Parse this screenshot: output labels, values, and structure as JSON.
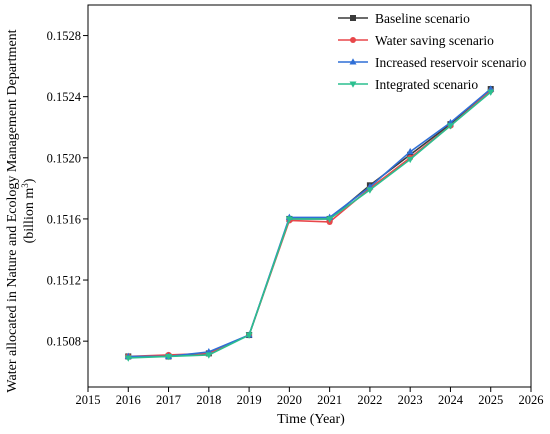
{
  "chart_data": {
    "type": "line",
    "title": "",
    "xlabel": "Time (Year)",
    "ylabel_line1": "Water allocated in Nature and Ecology Management Department",
    "ylabel_line2_prefix": "(billion m",
    "ylabel_line2_sup": "3",
    "ylabel_line2_suffix": ")",
    "xlim": [
      2015,
      2026
    ],
    "ylim": [
      0.1505,
      0.153
    ],
    "xticks": [
      "2015",
      "2016",
      "2017",
      "2018",
      "2019",
      "2020",
      "2021",
      "2022",
      "2023",
      "2024",
      "2025",
      "2026"
    ],
    "yticks": [
      "0.1508",
      "0.1512",
      "0.1516",
      "0.1520",
      "0.1524",
      "0.1528"
    ],
    "grid": false,
    "legend_position": "top-right",
    "x": [
      2016,
      2017,
      2018,
      2019,
      2020,
      2021,
      2022,
      2023,
      2024,
      2025
    ],
    "series": [
      {
        "name": "Baseline scenario",
        "color": "#3a3a3a",
        "marker": "square",
        "values": [
          0.1507,
          0.1507,
          0.15072,
          0.15084,
          0.1516,
          0.1516,
          0.15182,
          0.15202,
          0.15222,
          0.15245
        ]
      },
      {
        "name": "Water saving scenario",
        "color": "#e8474a",
        "marker": "circle",
        "values": [
          0.1507,
          0.15071,
          0.15072,
          0.15084,
          0.15159,
          0.15158,
          0.1518,
          0.152,
          0.15221,
          0.15244
        ]
      },
      {
        "name": "Increased reservoir scenario",
        "color": "#2f6fd6",
        "marker": "triangle-up",
        "values": [
          0.1507,
          0.1507,
          0.15073,
          0.15084,
          0.15161,
          0.15161,
          0.15181,
          0.15204,
          0.15223,
          0.15245
        ]
      },
      {
        "name": "Integrated scenario",
        "color": "#2bbf8f",
        "marker": "triangle-down",
        "values": [
          0.15069,
          0.1507,
          0.15071,
          0.15084,
          0.1516,
          0.1516,
          0.15179,
          0.15199,
          0.15221,
          0.15243
        ]
      }
    ]
  }
}
